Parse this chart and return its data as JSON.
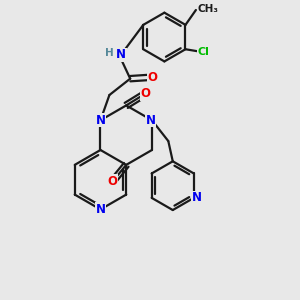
{
  "background_color": "#e8e8e8",
  "bond_color": "#1a1a1a",
  "bond_width": 1.6,
  "atom_colors": {
    "N": "#0000ee",
    "O": "#ee0000",
    "Cl": "#00bb00",
    "H": "#558899",
    "C": "#1a1a1a"
  },
  "font_size_atom": 8.5,
  "font_size_small": 7.5,
  "figsize": [
    3.0,
    3.0
  ],
  "dpi": 100,
  "xlim": [
    0,
    10
  ],
  "ylim": [
    0,
    10
  ]
}
